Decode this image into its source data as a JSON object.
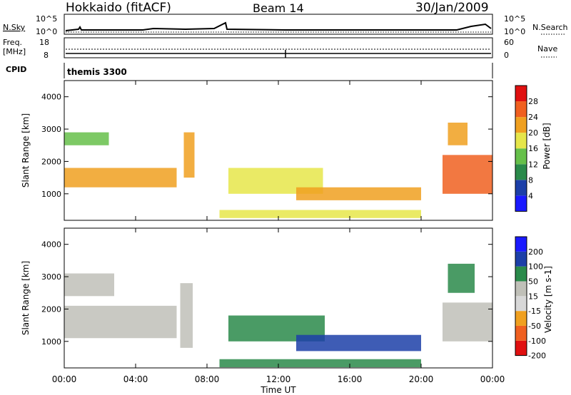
{
  "header": {
    "title": "Hokkaido (fitACF)",
    "beam": "Beam 14",
    "date": "30/Jan/2009"
  },
  "nsky_panel": {
    "label": "N.Sky",
    "left_ticks": [
      "10^5",
      "10^0"
    ],
    "right_ticks": [
      "10^5",
      "10^0"
    ],
    "right_label": "N.Search"
  },
  "freq_panel": {
    "label_line1": "Freq.",
    "label_line2": "[MHz]",
    "left_ticks": [
      "18",
      "8"
    ],
    "right_ticks": [
      "60",
      "0"
    ],
    "right_label": "Nave"
  },
  "cpid": {
    "label": "CPID",
    "value": "themis 3300"
  },
  "x_axis": {
    "ticks": [
      "00:00",
      "04:00",
      "08:00",
      "12:00",
      "16:00",
      "20:00",
      "00:00"
    ],
    "label": "Time UT"
  },
  "colors": {
    "power": [
      "#1a1aff",
      "#1c3fa8",
      "#2a8a4a",
      "#66c04a",
      "#e6e64a",
      "#f0a020",
      "#f06020",
      "#e01010"
    ],
    "velocity_gray": "#c0c0b8"
  },
  "chart_data": [
    {
      "type": "heatmap",
      "ylabel": "Slant Range [km]",
      "yticks": [
        "1000",
        "2000",
        "3000",
        "4000"
      ],
      "ylim": [
        180,
        4500
      ],
      "xlim": [
        0,
        24
      ],
      "colorbar": {
        "label": "Power [dB]",
        "ticks": [
          "4",
          "8",
          "12",
          "16",
          "20",
          "24",
          "28"
        ],
        "range": [
          0,
          30
        ]
      },
      "regions": [
        {
          "t0": 0,
          "t1": 6.3,
          "r0": 1200,
          "r1": 1800,
          "value": 22
        },
        {
          "t0": 0,
          "t1": 2.5,
          "r0": 2500,
          "r1": 2900,
          "value": 12
        },
        {
          "t0": 6.7,
          "t1": 7.3,
          "r0": 1500,
          "r1": 2900,
          "value": 20
        },
        {
          "t0": 9.2,
          "t1": 14.5,
          "r0": 1000,
          "r1": 1800,
          "value": 18
        },
        {
          "t0": 13,
          "t1": 20,
          "r0": 800,
          "r1": 1200,
          "value": 20
        },
        {
          "t0": 8.7,
          "t1": 20,
          "r0": 250,
          "r1": 500,
          "value": 18
        },
        {
          "t0": 21.2,
          "t1": 24,
          "r0": 1000,
          "r1": 2200,
          "value": 24
        },
        {
          "t0": 21.5,
          "t1": 22.6,
          "r0": 2500,
          "r1": 3200,
          "value": 20
        }
      ]
    },
    {
      "type": "heatmap",
      "ylabel": "Slant Range [km]",
      "yticks": [
        "1000",
        "2000",
        "3000",
        "4000"
      ],
      "ylim": [
        180,
        4500
      ],
      "xlim": [
        0,
        24
      ],
      "colorbar": {
        "label": "Velocity [m s-1]",
        "ticks": [
          "200",
          "100",
          "50",
          "15",
          "-15",
          "-50",
          "-100",
          "-200"
        ],
        "range": [
          -250,
          250
        ]
      },
      "regions": [
        {
          "t0": 0,
          "t1": 6.3,
          "r0": 1100,
          "r1": 2100,
          "value": 0
        },
        {
          "t0": 0,
          "t1": 2.8,
          "r0": 2400,
          "r1": 3100,
          "value": 0
        },
        {
          "t0": 6.5,
          "t1": 7.2,
          "r0": 800,
          "r1": 2800,
          "value": 0
        },
        {
          "t0": 9.2,
          "t1": 14.6,
          "r0": 1000,
          "r1": 1800,
          "value": 40
        },
        {
          "t0": 13,
          "t1": 20,
          "r0": 700,
          "r1": 1200,
          "value": 80
        },
        {
          "t0": 8.7,
          "t1": 20,
          "r0": 200,
          "r1": 450,
          "value": 40
        },
        {
          "t0": 21.2,
          "t1": 24,
          "r0": 1000,
          "r1": 2200,
          "value": 0
        },
        {
          "t0": 21.5,
          "t1": 23,
          "r0": 2500,
          "r1": 3400,
          "value": 40
        }
      ]
    }
  ]
}
